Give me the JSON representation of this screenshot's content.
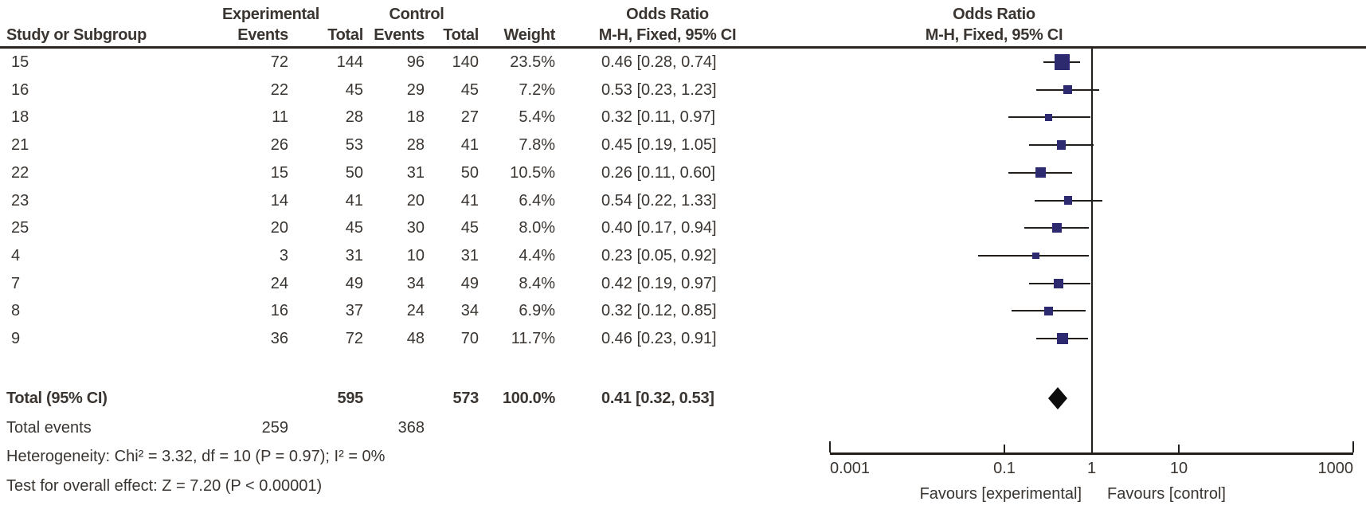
{
  "header": {
    "group_experimental": "Experimental",
    "group_control": "Control",
    "or_text_column_title": "Odds Ratio",
    "or_plot_column_title": "Odds Ratio",
    "study": "Study or Subgroup",
    "events": "Events",
    "total": "Total",
    "weight": "Weight",
    "method_text_column": "M-H, Fixed, 95% CI",
    "method_plot_column": "M-H, Fixed, 95% CI"
  },
  "rows": [
    {
      "study": "15",
      "exp_events": "72",
      "exp_total": "144",
      "ctrl_events": "96",
      "ctrl_total": "140",
      "weight": "23.5%",
      "or_ci": "0.46 [0.28, 0.74]"
    },
    {
      "study": "16",
      "exp_events": "22",
      "exp_total": "45",
      "ctrl_events": "29",
      "ctrl_total": "45",
      "weight": "7.2%",
      "or_ci": "0.53 [0.23, 1.23]"
    },
    {
      "study": "18",
      "exp_events": "11",
      "exp_total": "28",
      "ctrl_events": "18",
      "ctrl_total": "27",
      "weight": "5.4%",
      "or_ci": "0.32 [0.11, 0.97]"
    },
    {
      "study": "21",
      "exp_events": "26",
      "exp_total": "53",
      "ctrl_events": "28",
      "ctrl_total": "41",
      "weight": "7.8%",
      "or_ci": "0.45 [0.19, 1.05]"
    },
    {
      "study": "22",
      "exp_events": "15",
      "exp_total": "50",
      "ctrl_events": "31",
      "ctrl_total": "50",
      "weight": "10.5%",
      "or_ci": "0.26 [0.11, 0.60]"
    },
    {
      "study": "23",
      "exp_events": "14",
      "exp_total": "41",
      "ctrl_events": "20",
      "ctrl_total": "41",
      "weight": "6.4%",
      "or_ci": "0.54 [0.22, 1.33]"
    },
    {
      "study": "25",
      "exp_events": "20",
      "exp_total": "45",
      "ctrl_events": "30",
      "ctrl_total": "45",
      "weight": "8.0%",
      "or_ci": "0.40 [0.17, 0.94]"
    },
    {
      "study": "4",
      "exp_events": "3",
      "exp_total": "31",
      "ctrl_events": "10",
      "ctrl_total": "31",
      "weight": "4.4%",
      "or_ci": "0.23 [0.05, 0.92]"
    },
    {
      "study": "7",
      "exp_events": "24",
      "exp_total": "49",
      "ctrl_events": "34",
      "ctrl_total": "49",
      "weight": "8.4%",
      "or_ci": "0.42 [0.19, 0.97]"
    },
    {
      "study": "8",
      "exp_events": "16",
      "exp_total": "37",
      "ctrl_events": "24",
      "ctrl_total": "34",
      "weight": "6.9%",
      "or_ci": "0.32 [0.12, 0.85]"
    },
    {
      "study": "9",
      "exp_events": "36",
      "exp_total": "72",
      "ctrl_events": "48",
      "ctrl_total": "70",
      "weight": "11.7%",
      "or_ci": "0.46 [0.23, 0.91]"
    }
  ],
  "totals": {
    "label": "Total (95% CI)",
    "exp_total": "595",
    "ctrl_total": "573",
    "weight": "100.0%",
    "or_ci": "0.41 [0.32, 0.53]"
  },
  "total_events": {
    "label": "Total events",
    "exp": "259",
    "ctrl": "368"
  },
  "stats": {
    "heterogeneity": "Heterogeneity: Chi² = 3.32, df = 10 (P = 0.97); I² = 0%",
    "overall_effect": "Test for overall effect: Z = 7.20 (P < 0.00001)"
  },
  "chart_data": {
    "type": "forest",
    "x_scale": "log10",
    "x_range": [
      0.001,
      1000
    ],
    "axis_ticks": [
      {
        "value": 0.001,
        "label": "0.001"
      },
      {
        "value": 0.1,
        "label": "0.1"
      },
      {
        "value": 1,
        "label": "1"
      },
      {
        "value": 10,
        "label": "10"
      },
      {
        "value": 1000,
        "label": "1000"
      }
    ],
    "center_line_value": 1,
    "favours_left": "Favours [experimental]",
    "favours_right": "Favours [control]",
    "studies": [
      {
        "study": "15",
        "or": 0.46,
        "ci_low": 0.28,
        "ci_high": 0.74,
        "weight_pct": 23.5
      },
      {
        "study": "16",
        "or": 0.53,
        "ci_low": 0.23,
        "ci_high": 1.23,
        "weight_pct": 7.2
      },
      {
        "study": "18",
        "or": 0.32,
        "ci_low": 0.11,
        "ci_high": 0.97,
        "weight_pct": 5.4
      },
      {
        "study": "21",
        "or": 0.45,
        "ci_low": 0.19,
        "ci_high": 1.05,
        "weight_pct": 7.8
      },
      {
        "study": "22",
        "or": 0.26,
        "ci_low": 0.11,
        "ci_high": 0.6,
        "weight_pct": 10.5
      },
      {
        "study": "23",
        "or": 0.54,
        "ci_low": 0.22,
        "ci_high": 1.33,
        "weight_pct": 6.4
      },
      {
        "study": "25",
        "or": 0.4,
        "ci_low": 0.17,
        "ci_high": 0.94,
        "weight_pct": 8.0
      },
      {
        "study": "4",
        "or": 0.23,
        "ci_low": 0.05,
        "ci_high": 0.92,
        "weight_pct": 4.4
      },
      {
        "study": "7",
        "or": 0.42,
        "ci_low": 0.19,
        "ci_high": 0.97,
        "weight_pct": 8.4
      },
      {
        "study": "8",
        "or": 0.32,
        "ci_low": 0.12,
        "ci_high": 0.85,
        "weight_pct": 6.9
      },
      {
        "study": "9",
        "or": 0.46,
        "ci_low": 0.23,
        "ci_high": 0.91,
        "weight_pct": 11.7
      }
    ],
    "pooled": {
      "or": 0.41,
      "ci_low": 0.32,
      "ci_high": 0.53
    },
    "colors": {
      "marker": "#2e2a70",
      "diamond": "#0d0d0d",
      "line": "#221e1b",
      "text": "#3a3531"
    }
  }
}
